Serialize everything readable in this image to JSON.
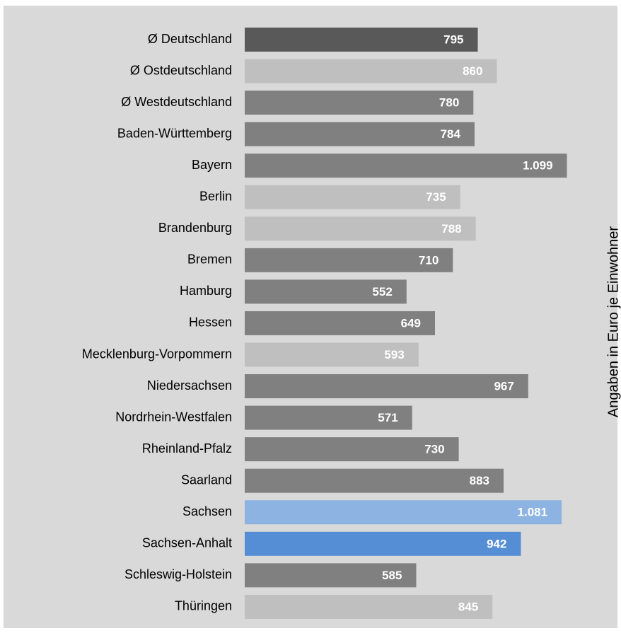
{
  "chart_data": {
    "type": "barh",
    "categories": [
      "Ø Deutschland",
      "Ø Ostdeutschland",
      "Ø Westdeutschland",
      "Baden-Württemberg",
      "Bayern",
      "Berlin",
      "Brandenburg",
      "Bremen",
      "Hamburg",
      "Hessen",
      "Mecklenburg-Vorpommern",
      "Niedersachsen",
      "Nordrhein-Westfalen",
      "Rheinland-Pfalz",
      "Saarland",
      "Sachsen",
      "Sachsen-Anhalt",
      "Schleswig-Holstein",
      "Thüringen"
    ],
    "values": [
      795,
      860,
      780,
      784,
      1099,
      735,
      788,
      710,
      552,
      649,
      593,
      967,
      571,
      730,
      883,
      1081,
      942,
      585,
      845
    ],
    "value_labels": [
      "795",
      "860",
      "780",
      "784",
      "1.099",
      "735",
      "788",
      "710",
      "552",
      "649",
      "593",
      "967",
      "571",
      "730",
      "883",
      "1.081",
      "942",
      "585",
      "845"
    ],
    "colors": [
      "#595959",
      "#bfbfbf",
      "#808080",
      "#808080",
      "#808080",
      "#bfbfbf",
      "#bfbfbf",
      "#808080",
      "#808080",
      "#808080",
      "#bfbfbf",
      "#808080",
      "#808080",
      "#808080",
      "#808080",
      "#8db3e2",
      "#558ed5",
      "#808080",
      "#bfbfbf"
    ],
    "ylabel": "Angaben in Euro je Einwohner"
  }
}
